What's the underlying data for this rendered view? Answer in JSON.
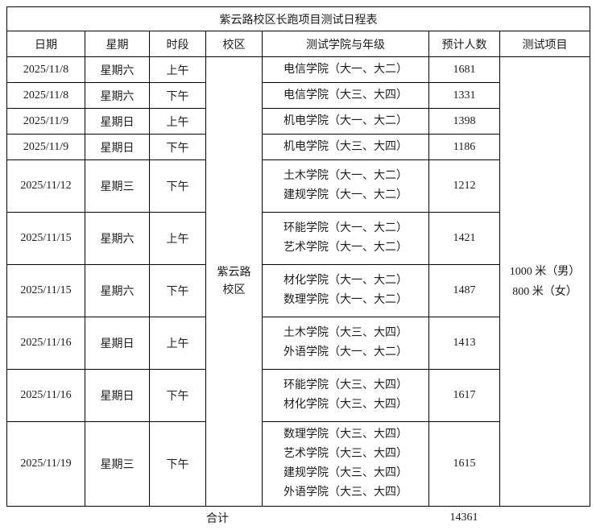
{
  "title": "紫云路校区长跑项目测试日程表",
  "columns": [
    "日期",
    "星期",
    "时段",
    "校区",
    "测试学院与年级",
    "预计人数",
    "测试项目"
  ],
  "campus": "紫云路校区",
  "test_items": [
    "1000 米（男）",
    "800 米（女）"
  ],
  "rows": [
    {
      "date": "2025/11/8",
      "weekday": "星期六",
      "period": "上午",
      "colleges": [
        "电信学院（大一、大二）"
      ],
      "count": "1681"
    },
    {
      "date": "2025/11/8",
      "weekday": "星期六",
      "period": "下午",
      "colleges": [
        "电信学院（大三、大四）"
      ],
      "count": "1331"
    },
    {
      "date": "2025/11/9",
      "weekday": "星期日",
      "period": "上午",
      "colleges": [
        "机电学院（大一、大二）"
      ],
      "count": "1398"
    },
    {
      "date": "2025/11/9",
      "weekday": "星期日",
      "period": "下午",
      "colleges": [
        "机电学院（大三、大四）"
      ],
      "count": "1186"
    },
    {
      "date": "2025/11/12",
      "weekday": "星期三",
      "period": "下午",
      "colleges": [
        "土木学院（大一、大二）",
        "建规学院（大一、大二）"
      ],
      "count": "1212"
    },
    {
      "date": "2025/11/15",
      "weekday": "星期六",
      "period": "上午",
      "colleges": [
        "环能学院（大一、大二）",
        "艺术学院（大一、大二）"
      ],
      "count": "1421"
    },
    {
      "date": "2025/11/15",
      "weekday": "星期六",
      "period": "下午",
      "colleges": [
        "材化学院（大一、大二）",
        "数理学院（大一、大二）"
      ],
      "count": "1487"
    },
    {
      "date": "2025/11/16",
      "weekday": "星期日",
      "period": "上午",
      "colleges": [
        "土木学院（大三、大四）",
        "外语学院（大一、大二）"
      ],
      "count": "1413"
    },
    {
      "date": "2025/11/16",
      "weekday": "星期日",
      "period": "下午",
      "colleges": [
        "环能学院（大三、大四）",
        "材化学院（大三、大四）"
      ],
      "count": "1617"
    },
    {
      "date": "2025/11/19",
      "weekday": "星期三",
      "period": "下午",
      "colleges": [
        "数理学院（大三、大四）",
        "艺术学院（大三、大四）",
        "建规学院（大三、大四）",
        "外语学院（大三、大四）"
      ],
      "count": "1615"
    }
  ],
  "footer": {
    "label": "合计",
    "total": "14361"
  }
}
